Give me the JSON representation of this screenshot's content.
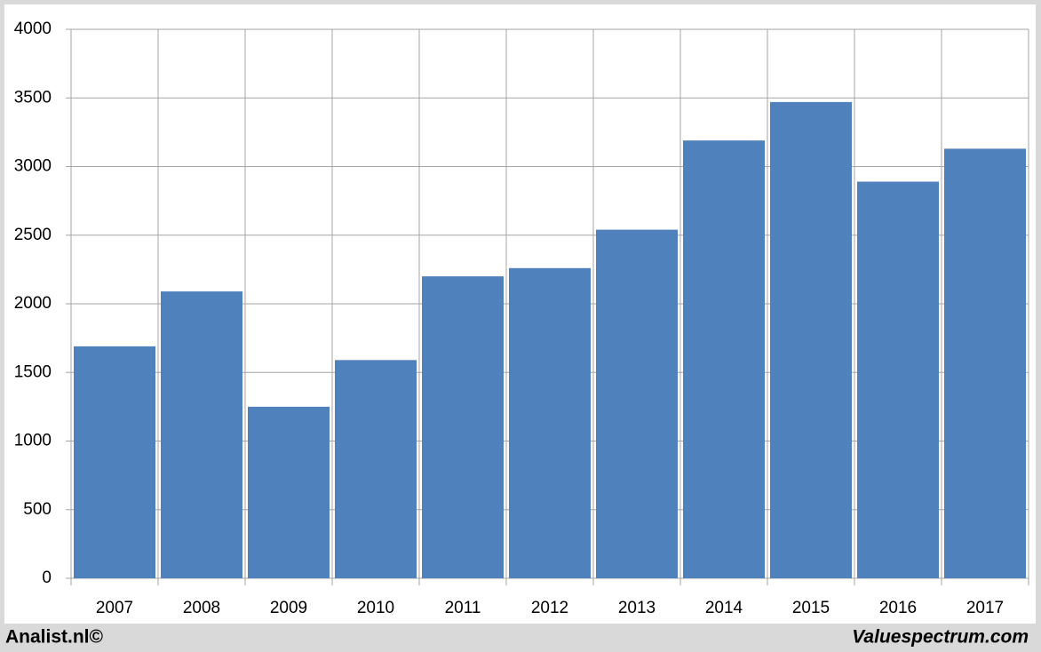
{
  "chart_data": {
    "type": "bar",
    "categories": [
      "2007",
      "2008",
      "2009",
      "2010",
      "2011",
      "2012",
      "2013",
      "2014",
      "2015",
      "2016",
      "2017"
    ],
    "values": [
      1690,
      2090,
      1250,
      1590,
      2200,
      2260,
      2540,
      3190,
      3470,
      2890,
      3130
    ],
    "color": "#4f81bd",
    "ylim": [
      0,
      4000
    ],
    "yticks": [
      0,
      500,
      1000,
      1500,
      2000,
      2500,
      3000,
      3500,
      4000
    ],
    "grid": true,
    "footer_left": "Analist.nl©",
    "footer_right": "Valuespectrum.com"
  }
}
